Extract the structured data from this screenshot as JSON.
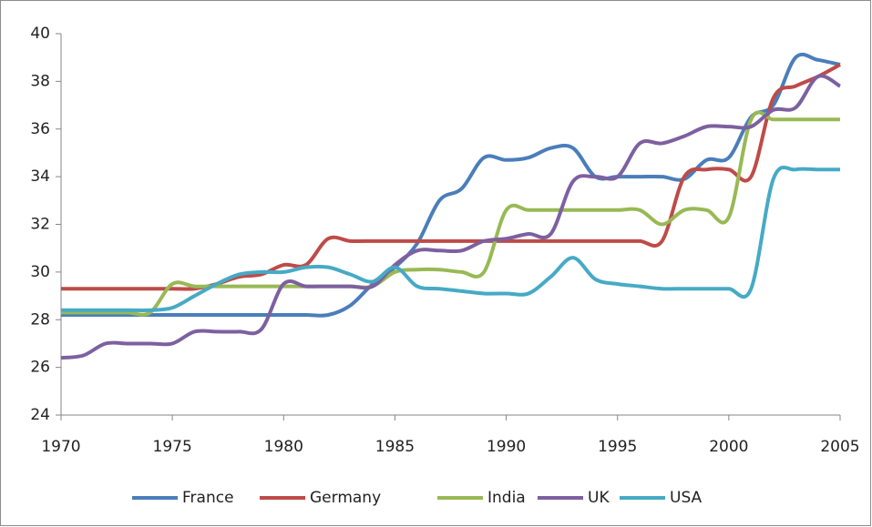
{
  "chart_data": {
    "type": "line",
    "x": [
      1970,
      1971,
      1972,
      1973,
      1974,
      1975,
      1976,
      1977,
      1978,
      1979,
      1980,
      1981,
      1982,
      1983,
      1984,
      1985,
      1986,
      1987,
      1988,
      1989,
      1990,
      1991,
      1992,
      1993,
      1994,
      1995,
      1996,
      1997,
      1998,
      1999,
      2000,
      2001,
      2002,
      2003,
      2004,
      2005
    ],
    "xlim": [
      1970,
      2005
    ],
    "xticks": [
      1970,
      1975,
      1980,
      1985,
      1990,
      1995,
      2000,
      2005
    ],
    "ylim": [
      24,
      40
    ],
    "yticks": [
      24,
      26,
      28,
      30,
      32,
      34,
      36,
      38,
      40
    ],
    "grid": false,
    "legend": "bottom",
    "series": [
      {
        "name": "France",
        "color": "#4a7ebb",
        "values": [
          28.2,
          28.2,
          28.2,
          28.2,
          28.2,
          28.2,
          28.2,
          28.2,
          28.2,
          28.2,
          28.2,
          28.2,
          28.2,
          28.6,
          29.5,
          30.2,
          31.2,
          33.0,
          33.5,
          34.8,
          34.7,
          34.8,
          35.2,
          35.2,
          34.0,
          34.0,
          34.0,
          34.0,
          33.9,
          34.7,
          34.8,
          36.5,
          37.0,
          39.0,
          38.9,
          38.7
        ]
      },
      {
        "name": "Germany",
        "color": "#be4b48",
        "values": [
          29.3,
          29.3,
          29.3,
          29.3,
          29.3,
          29.3,
          29.3,
          29.5,
          29.8,
          29.9,
          30.3,
          30.3,
          31.4,
          31.3,
          31.3,
          31.3,
          31.3,
          31.3,
          31.3,
          31.3,
          31.3,
          31.3,
          31.3,
          31.3,
          31.3,
          31.3,
          31.3,
          31.3,
          34.0,
          34.3,
          34.3,
          34.0,
          37.3,
          37.8,
          38.2,
          38.7
        ]
      },
      {
        "name": "India",
        "color": "#98b954",
        "values": [
          28.3,
          28.3,
          28.3,
          28.3,
          28.3,
          29.5,
          29.4,
          29.4,
          29.4,
          29.4,
          29.4,
          29.4,
          29.4,
          29.4,
          29.4,
          30.0,
          30.1,
          30.1,
          30.0,
          30.0,
          32.6,
          32.6,
          32.6,
          32.6,
          32.6,
          32.6,
          32.6,
          32.0,
          32.6,
          32.6,
          32.3,
          36.4,
          36.4,
          36.4,
          36.4,
          36.4
        ]
      },
      {
        "name": "UK",
        "color": "#7d60a0",
        "values": [
          26.4,
          26.5,
          27.0,
          27.0,
          27.0,
          27.0,
          27.5,
          27.5,
          27.5,
          27.6,
          29.5,
          29.4,
          29.4,
          29.4,
          29.4,
          30.3,
          30.9,
          30.9,
          30.9,
          31.3,
          31.4,
          31.6,
          31.6,
          33.8,
          34.0,
          34.0,
          35.4,
          35.4,
          35.7,
          36.1,
          36.1,
          36.1,
          36.8,
          36.9,
          38.2,
          37.8
        ]
      },
      {
        "name": "USA",
        "color": "#46aac5",
        "values": [
          28.4,
          28.4,
          28.4,
          28.4,
          28.4,
          28.5,
          29.0,
          29.5,
          29.9,
          30.0,
          30.0,
          30.2,
          30.2,
          29.9,
          29.6,
          30.2,
          29.4,
          29.3,
          29.2,
          29.1,
          29.1,
          29.1,
          29.8,
          30.6,
          29.7,
          29.5,
          29.4,
          29.3,
          29.3,
          29.3,
          29.3,
          29.3,
          33.9,
          34.3,
          34.3,
          34.3
        ]
      }
    ]
  }
}
